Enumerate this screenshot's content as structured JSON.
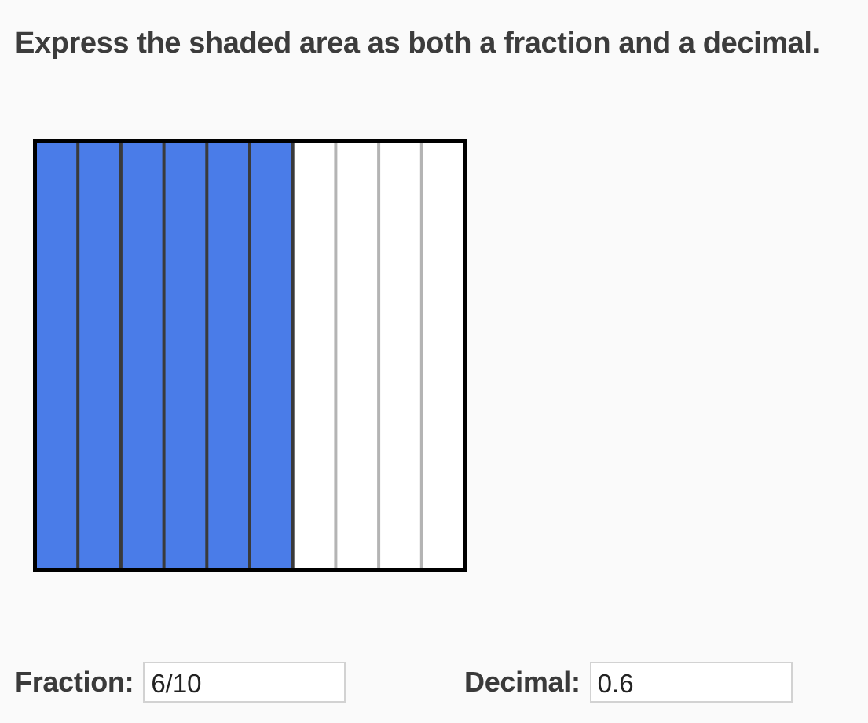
{
  "question": {
    "text": "Express the shaded area as both a fraction and a decimal."
  },
  "grid": {
    "total_strips": 10,
    "shaded_strips": 6,
    "shaded_color": "#4a7ce8",
    "unshaded_color": "#ffffff",
    "shaded_divider_color": "#3a3a3a",
    "unshaded_divider_color": "#b4b4b4",
    "border_color": "#000000"
  },
  "answers": {
    "fraction_label": "Fraction:",
    "fraction_value": "6/10",
    "decimal_label": "Decimal:",
    "decimal_value": "0.6"
  }
}
